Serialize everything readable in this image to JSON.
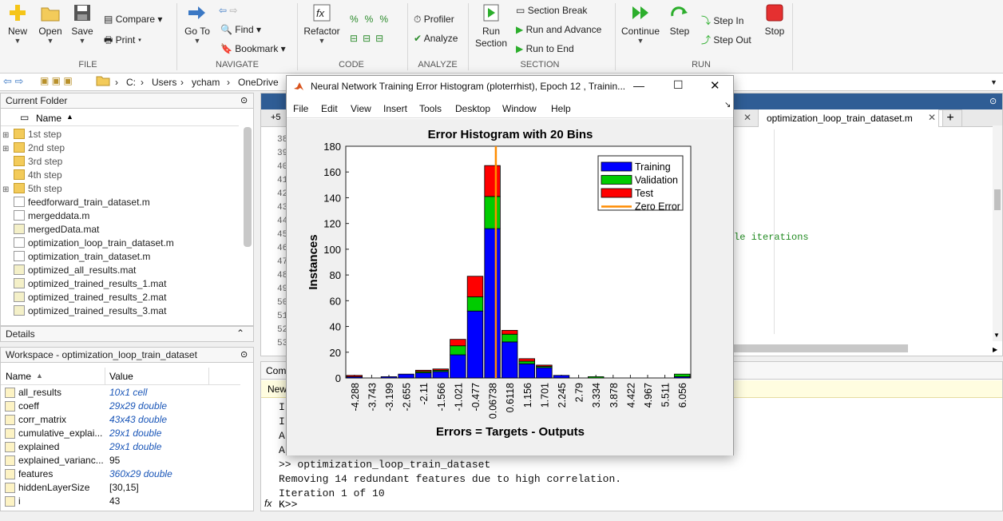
{
  "ribbon": {
    "file": {
      "new": "New",
      "open": "Open",
      "save": "Save",
      "compare": "Compare",
      "print": "Print",
      "label": "FILE"
    },
    "navigate": {
      "goto": "Go To",
      "find": "Find",
      "bookmark": "Bookmark",
      "label": "NAVIGATE"
    },
    "code": {
      "refactor": "Refactor",
      "label": "CODE"
    },
    "analyze": {
      "profiler": "Profiler",
      "analyze": "Analyze",
      "label": "ANALYZE"
    },
    "section": {
      "run_section": "Run\nSection",
      "section_break": "Section Break",
      "run_advance": "Run and Advance",
      "run_end": "Run to End",
      "label": "SECTION"
    },
    "run": {
      "continue": "Continue",
      "step": "Step",
      "step_in": "Step In",
      "step_out": "Step Out",
      "stop": "Stop",
      "label": "RUN"
    }
  },
  "address": {
    "parts": [
      "C:",
      "Users",
      "ycham",
      "OneDrive"
    ]
  },
  "current_folder": {
    "title": "Current Folder",
    "col_name": "Name",
    "items": [
      {
        "name": "1st step",
        "type": "folder",
        "expandable": true
      },
      {
        "name": "2nd step",
        "type": "folder",
        "expandable": true
      },
      {
        "name": "3rd step",
        "type": "folder",
        "expandable": false
      },
      {
        "name": "4th step",
        "type": "folder",
        "expandable": false
      },
      {
        "name": "5th step",
        "type": "folder",
        "expandable": true
      },
      {
        "name": "feedforward_train_dataset.m",
        "type": "m"
      },
      {
        "name": "mergeddata.m",
        "type": "m"
      },
      {
        "name": "mergedData.mat",
        "type": "mat"
      },
      {
        "name": "optimization_loop_train_dataset.m",
        "type": "m"
      },
      {
        "name": "optimization_train_dataset.m",
        "type": "m"
      },
      {
        "name": "optimized_all_results.mat",
        "type": "mat"
      },
      {
        "name": "optimized_trained_results_1.mat",
        "type": "mat"
      },
      {
        "name": "optimized_trained_results_2.mat",
        "type": "mat"
      },
      {
        "name": "optimized_trained_results_3.mat",
        "type": "mat"
      }
    ]
  },
  "details": {
    "title": "Details"
  },
  "workspace": {
    "title": "Workspace - optimization_loop_train_dataset",
    "col_name": "Name",
    "col_value": "Value",
    "rows": [
      {
        "name": "all_results",
        "value": "10x1 cell",
        "link": true
      },
      {
        "name": "coeff",
        "value": "29x29 double",
        "link": true
      },
      {
        "name": "corr_matrix",
        "value": "43x43 double",
        "link": true
      },
      {
        "name": "cumulative_explai...",
        "value": "29x1 double",
        "link": true
      },
      {
        "name": "explained",
        "value": "29x1 double",
        "link": true
      },
      {
        "name": "explained_varianc...",
        "value": "95",
        "link": false
      },
      {
        "name": "features",
        "value": "360x29 double",
        "link": true
      },
      {
        "name": "hiddenLayerSize",
        "value": "[30,15]",
        "link": false
      },
      {
        "name": "i",
        "value": "43",
        "link": false
      }
    ]
  },
  "editor": {
    "tab_active": "optimization_loop_train_dataset.m",
    "line_prefix": "+5",
    "line_numbers": [
      "38",
      "39",
      "40",
      "41",
      "42",
      "43",
      "44",
      "45",
      "46",
      "47",
      "48",
      "49",
      "50",
      "51",
      "52",
      "53"
    ],
    "code_fragment": "le iterations"
  },
  "command_window": {
    "title": "Comm",
    "new_label": "New",
    "lines": [
      "I",
      "I",
      "A",
      "A",
      ">> optimization_loop_train_dataset",
      "Removing 14 redundant features due to high correlation.",
      "Iteration 1 of 10"
    ],
    "prompt": "K>>",
    "fx": "fx"
  },
  "figure": {
    "title": "Neural Network Training Error Histogram (ploterrhist), Epoch 12 , Trainin...",
    "menu": [
      "File",
      "Edit",
      "View",
      "Insert",
      "Tools",
      "Desktop",
      "Window",
      "Help"
    ]
  },
  "chart_data": {
    "type": "bar",
    "title": "Error Histogram with 20 Bins",
    "xlabel": "Errors = Targets - Outputs",
    "ylabel": "Instances",
    "ylim": [
      0,
      180
    ],
    "yticks": [
      0,
      20,
      40,
      60,
      80,
      100,
      120,
      140,
      160,
      180
    ],
    "categories": [
      "-4.288",
      "-3.743",
      "-3.199",
      "-2.655",
      "-2.11",
      "-1.566",
      "-1.021",
      "-0.477",
      "0.06738",
      "0.6118",
      "1.156",
      "1.701",
      "2.245",
      "2.79",
      "3.334",
      "3.878",
      "4.422",
      "4.967",
      "5.511",
      "6.056"
    ],
    "series": [
      {
        "name": "Training",
        "color": "#0000ff",
        "values": [
          1,
          0,
          1,
          3,
          4,
          5,
          18,
          52,
          116,
          28,
          11,
          8,
          2,
          0,
          0,
          0,
          0,
          0,
          0,
          1
        ]
      },
      {
        "name": "Validation",
        "color": "#00cc00",
        "values": [
          0,
          0,
          0,
          0,
          1,
          1,
          7,
          11,
          25,
          6,
          2,
          1,
          0,
          0,
          1,
          0,
          0,
          0,
          0,
          2
        ]
      },
      {
        "name": "Test",
        "color": "#ff0000",
        "values": [
          1,
          0,
          0,
          0,
          1,
          1,
          5,
          16,
          24,
          3,
          2,
          1,
          0,
          0,
          0,
          0,
          0,
          0,
          0,
          0
        ]
      }
    ],
    "zero_error": {
      "name": "Zero Error",
      "color": "#ff8c00",
      "x_category_index": 8.2
    },
    "legend_position": "top-right"
  }
}
